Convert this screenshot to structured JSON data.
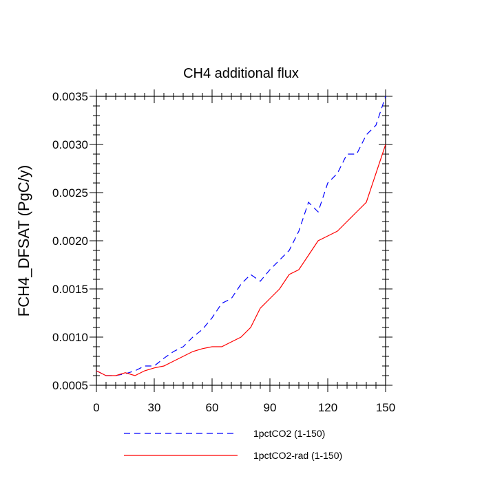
{
  "chart_data": {
    "type": "line",
    "title": "CH4 additional flux",
    "xlabel": "",
    "ylabel": "FCH4_DFSAT  (PgC/y)",
    "xlim": [
      0,
      150
    ],
    "ylim": [
      0.0005,
      0.0035
    ],
    "xticks": [
      0,
      30,
      60,
      90,
      120,
      150
    ],
    "xtick_labels": [
      "0",
      "30",
      "60",
      "90",
      "120",
      "150"
    ],
    "yticks": [
      0.0005,
      0.001,
      0.0015,
      0.002,
      0.0025,
      0.003,
      0.0035
    ],
    "ytick_labels": [
      "0.0005",
      "0.0010",
      "0.0015",
      "0.0020",
      "0.0025",
      "0.0030",
      "0.0035"
    ],
    "legend_position": "bottom",
    "series": [
      {
        "name": "1pctCO2 (1-150)",
        "color": "#0000ff",
        "dash": "dashed",
        "x": [
          0,
          5,
          10,
          15,
          20,
          25,
          30,
          35,
          40,
          45,
          50,
          55,
          60,
          65,
          70,
          75,
          80,
          85,
          90,
          95,
          100,
          105,
          110,
          115,
          120,
          125,
          130,
          135,
          140,
          145,
          150
        ],
        "y": [
          0.00065,
          0.0006,
          0.0006,
          0.00062,
          0.00065,
          0.0007,
          0.0007,
          0.00078,
          0.00085,
          0.0009,
          0.001,
          0.00108,
          0.0012,
          0.00135,
          0.0014,
          0.00155,
          0.00165,
          0.00158,
          0.0017,
          0.0018,
          0.0019,
          0.0021,
          0.0024,
          0.0023,
          0.0026,
          0.0027,
          0.0029,
          0.0029,
          0.0031,
          0.0032,
          0.0035
        ]
      },
      {
        "name": "1pctCO2-rad (1-150)",
        "color": "#ff0000",
        "dash": "solid",
        "x": [
          0,
          5,
          10,
          15,
          20,
          25,
          30,
          35,
          40,
          45,
          50,
          55,
          60,
          65,
          70,
          75,
          80,
          85,
          90,
          95,
          100,
          105,
          110,
          115,
          120,
          125,
          130,
          135,
          140,
          145,
          150
        ],
        "y": [
          0.00065,
          0.0006,
          0.0006,
          0.00063,
          0.0006,
          0.00065,
          0.00068,
          0.0007,
          0.00075,
          0.0008,
          0.00085,
          0.00088,
          0.0009,
          0.0009,
          0.00095,
          0.001,
          0.0011,
          0.0013,
          0.0014,
          0.0015,
          0.00165,
          0.0017,
          0.00185,
          0.002,
          0.00205,
          0.0021,
          0.0022,
          0.0023,
          0.0024,
          0.0027,
          0.003
        ]
      }
    ]
  }
}
